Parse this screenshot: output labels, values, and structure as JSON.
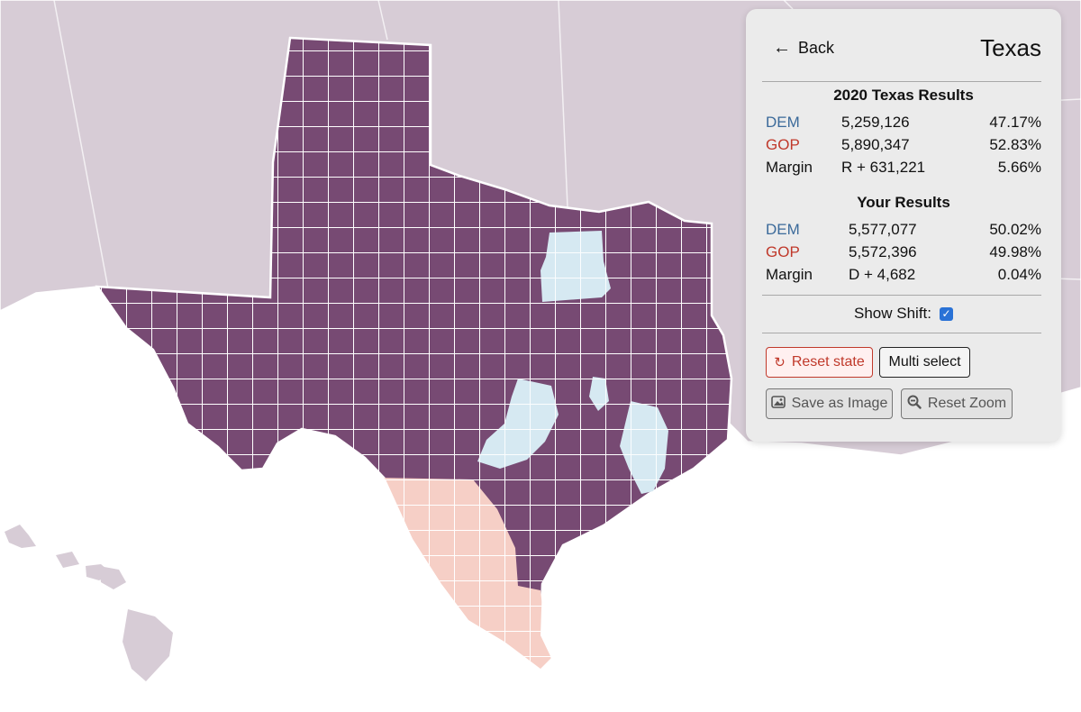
{
  "panel": {
    "back_label": "Back",
    "state_name": "Texas",
    "actual": {
      "title": "2020 Texas Results",
      "rows": [
        {
          "label": "DEM",
          "votes": "5,259,126",
          "pct": "47.17%"
        },
        {
          "label": "GOP",
          "votes": "5,890,347",
          "pct": "52.83%"
        },
        {
          "label": "Margin",
          "votes": "R + 631,221",
          "pct": "5.66%"
        }
      ]
    },
    "yours": {
      "title": "Your Results",
      "rows": [
        {
          "label": "DEM",
          "votes": "5,577,077",
          "pct": "50.02%"
        },
        {
          "label": "GOP",
          "votes": "5,572,396",
          "pct": "49.98%"
        },
        {
          "label": "Margin",
          "votes": "D + 4,682",
          "pct": "0.04%"
        }
      ]
    },
    "show_shift_label": "Show Shift:",
    "show_shift_checked": true,
    "buttons": {
      "reset_state": "Reset state",
      "multi_select": "Multi select",
      "save_image": "Save as Image",
      "reset_zoom": "Reset Zoom"
    }
  },
  "colors": {
    "dem": "#3b6a9a",
    "gop": "#c0392b",
    "state_fill": "#774a73",
    "dem_shift_county": "#d6e9f2",
    "gop_shift_county": "#f6cfc6",
    "neighbor_states": "#d7ccd6"
  },
  "icons": [
    "arrow-left-icon",
    "refresh-icon",
    "image-icon",
    "zoom-out-icon",
    "checkbox-checked-icon"
  ]
}
